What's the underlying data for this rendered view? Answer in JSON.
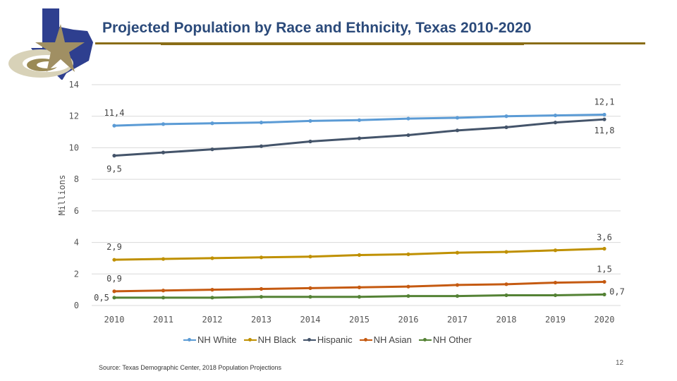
{
  "title": "Projected Population by Race and Ethnicity, Texas 2010-2020",
  "source": "Source: Texas Demographic Center, 2018 Population Projections",
  "page_number": "12",
  "chart_data": {
    "type": "line",
    "title": "Projected Population by Race and Ethnicity, Texas 2010-2020",
    "ylabel": "Millions",
    "ylim": [
      0,
      14
    ],
    "yticks": [
      0,
      2,
      4,
      6,
      8,
      10,
      12,
      14
    ],
    "grid": true,
    "legend": "bottom",
    "categories": [
      "2010",
      "2011",
      "2012",
      "2013",
      "2014",
      "2015",
      "2016",
      "2017",
      "2018",
      "2019",
      "2020"
    ],
    "series": [
      {
        "name": "NH White",
        "color": "#5b9bd5",
        "values": [
          11.4,
          11.5,
          11.55,
          11.6,
          11.7,
          11.75,
          11.85,
          11.9,
          12.0,
          12.05,
          12.1
        ],
        "first_label": "11,4",
        "last_label": "12,1"
      },
      {
        "name": "NH Black",
        "color": "#bf9000",
        "values": [
          2.9,
          2.95,
          3.0,
          3.05,
          3.1,
          3.2,
          3.25,
          3.35,
          3.4,
          3.5,
          3.6
        ],
        "first_label": "2,9",
        "last_label": "3,6"
      },
      {
        "name": "Hispanic",
        "color": "#44546a",
        "values": [
          9.5,
          9.7,
          9.9,
          10.1,
          10.4,
          10.6,
          10.8,
          11.1,
          11.3,
          11.6,
          11.8
        ],
        "first_label": "9,5",
        "last_label": "11,8"
      },
      {
        "name": "NH Asian",
        "color": "#c55a11",
        "values": [
          0.9,
          0.95,
          1.0,
          1.05,
          1.1,
          1.15,
          1.2,
          1.3,
          1.35,
          1.45,
          1.5
        ],
        "first_label": "0,9",
        "last_label": "1,5"
      },
      {
        "name": "NH Other",
        "color": "#548235",
        "values": [
          0.5,
          0.5,
          0.5,
          0.55,
          0.55,
          0.55,
          0.6,
          0.6,
          0.65,
          0.65,
          0.7
        ],
        "first_label": "0,5",
        "last_label": "0,7"
      }
    ]
  }
}
